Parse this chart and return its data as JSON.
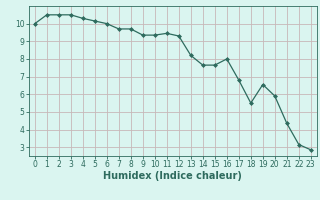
{
  "x": [
    0,
    1,
    2,
    3,
    4,
    5,
    6,
    7,
    8,
    9,
    10,
    11,
    12,
    13,
    14,
    15,
    16,
    17,
    18,
    19,
    20,
    21,
    22,
    23
  ],
  "y": [
    10.0,
    10.5,
    10.5,
    10.5,
    10.3,
    10.15,
    10.0,
    9.7,
    9.7,
    9.35,
    9.35,
    9.45,
    9.3,
    8.2,
    7.65,
    7.65,
    8.0,
    6.8,
    5.5,
    6.55,
    5.9,
    4.35,
    3.15,
    2.85
  ],
  "xlabel": "Humidex (Indice chaleur)",
  "xlim": [
    -0.5,
    23.5
  ],
  "ylim": [
    2.5,
    11.0
  ],
  "yticks": [
    3,
    4,
    5,
    6,
    7,
    8,
    9,
    10
  ],
  "xticks": [
    0,
    1,
    2,
    3,
    4,
    5,
    6,
    7,
    8,
    9,
    10,
    11,
    12,
    13,
    14,
    15,
    16,
    17,
    18,
    19,
    20,
    21,
    22,
    23
  ],
  "line_color": "#2e6b5e",
  "marker_color": "#2e6b5e",
  "bg_color": "#daf5f0",
  "grid_color": "#c8b8b8",
  "axes_color": "#2e6b5e",
  "label_fontsize": 7,
  "tick_fontsize": 5.5
}
